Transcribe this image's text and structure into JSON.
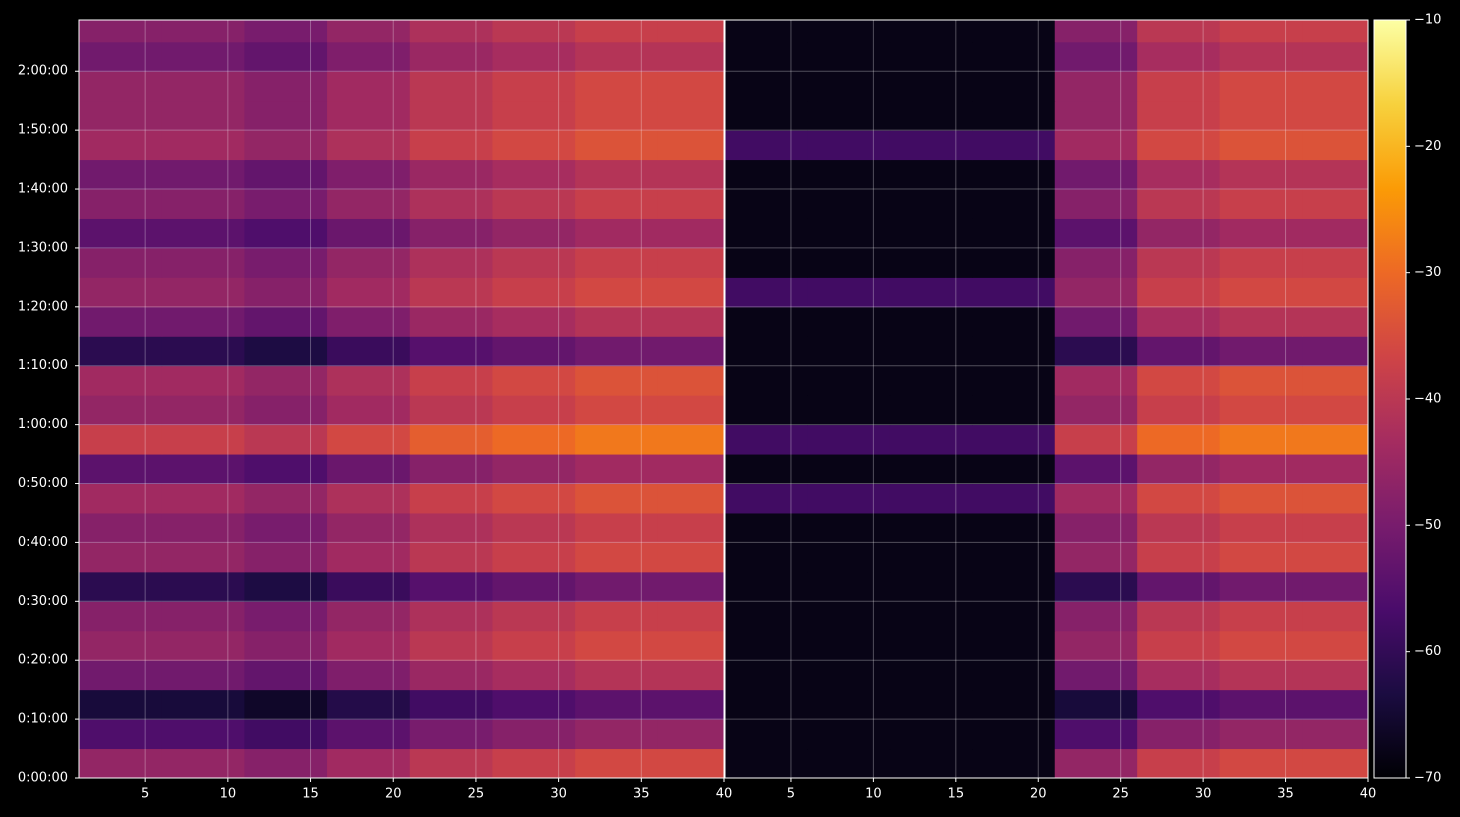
{
  "chart_data": {
    "type": "heatmap",
    "ylim": [
      0,
      7722
    ],
    "yticks": [
      {
        "value": 0,
        "label": "0:00:00"
      },
      {
        "value": 600,
        "label": "0:10:00"
      },
      {
        "value": 1200,
        "label": "0:20:00"
      },
      {
        "value": 1800,
        "label": "0:30:00"
      },
      {
        "value": 2400,
        "label": "0:40:00"
      },
      {
        "value": 3000,
        "label": "0:50:00"
      },
      {
        "value": 3600,
        "label": "1:00:00"
      },
      {
        "value": 4200,
        "label": "1:10:00"
      },
      {
        "value": 4800,
        "label": "1:20:00"
      },
      {
        "value": 5400,
        "label": "1:30:00"
      },
      {
        "value": 6000,
        "label": "1:40:00"
      },
      {
        "value": 6600,
        "label": "1:50:00"
      },
      {
        "value": 7200,
        "label": "2:00:00"
      }
    ],
    "grid": true,
    "zlim": [
      -70,
      -10
    ],
    "zticks": [
      {
        "value": -70,
        "label": "−70"
      },
      {
        "value": -60,
        "label": "−60"
      },
      {
        "value": -50,
        "label": "−50"
      },
      {
        "value": -40,
        "label": "−40"
      },
      {
        "value": -30,
        "label": "−30"
      },
      {
        "value": -20,
        "label": "−20"
      },
      {
        "value": -10,
        "label": "−10"
      }
    ],
    "colormap": [
      "#000004",
      "#1b0c41",
      "#4a0c6b",
      "#781c6d",
      "#a52c60",
      "#cf4446",
      "#ed6925",
      "#fb9b06",
      "#f7d13d",
      "#fcffa4"
    ],
    "x_bins": [
      1,
      6,
      11,
      16,
      21,
      26,
      31,
      36,
      40
    ],
    "y_bins": [
      0,
      300,
      600,
      900,
      1200,
      1500,
      1800,
      2100,
      2400,
      2700,
      3000,
      3300,
      3600,
      3900,
      4200,
      4500,
      4800,
      5100,
      5400,
      5700,
      6000,
      6300,
      6600,
      6900,
      7200,
      7500,
      7800
    ],
    "panels": [
      {
        "xlim": [
          1,
          40
        ],
        "xticks": [
          5,
          10,
          15,
          20,
          25,
          30,
          35,
          40
        ],
        "z": [
          [
            -46,
            -46,
            -48,
            -44,
            -40,
            -38,
            -36,
            -36
          ],
          [
            -56,
            -56,
            -58,
            -54,
            -50,
            -48,
            -46,
            -46
          ],
          [
            -64,
            -64,
            -66,
            -62,
            -58,
            -56,
            -54,
            -54
          ],
          [
            -51,
            -51,
            -53,
            -49,
            -45,
            -43,
            -41,
            -41
          ],
          [
            -46,
            -46,
            -48,
            -44,
            -40,
            -38,
            -36,
            -36
          ],
          [
            -48,
            -48,
            -50,
            -46,
            -42,
            -40,
            -38,
            -38
          ],
          [
            -61,
            -61,
            -63,
            -59,
            -55,
            -53,
            -51,
            -51
          ],
          [
            -46,
            -46,
            -48,
            -44,
            -40,
            -38,
            -36,
            -36
          ],
          [
            -48,
            -48,
            -50,
            -46,
            -42,
            -40,
            -38,
            -38
          ],
          [
            -44,
            -44,
            -46,
            -42,
            -38,
            -36,
            -34,
            -34
          ],
          [
            -54,
            -54,
            -56,
            -52,
            -48,
            -46,
            -44,
            -44
          ],
          [
            -38,
            -38,
            -40,
            -36,
            -32,
            -30,
            -28,
            -28
          ],
          [
            -46,
            -46,
            -48,
            -44,
            -40,
            -38,
            -36,
            -36
          ],
          [
            -44,
            -44,
            -46,
            -42,
            -38,
            -36,
            -34,
            -34
          ],
          [
            -61,
            -61,
            -63,
            -59,
            -55,
            -53,
            -51,
            -51
          ],
          [
            -51,
            -51,
            -53,
            -49,
            -45,
            -43,
            -41,
            -41
          ],
          [
            -46,
            -46,
            -48,
            -44,
            -40,
            -38,
            -36,
            -36
          ],
          [
            -48,
            -48,
            -50,
            -46,
            -42,
            -40,
            -38,
            -38
          ],
          [
            -54,
            -54,
            -56,
            -52,
            -48,
            -46,
            -44,
            -44
          ],
          [
            -48,
            -48,
            -50,
            -46,
            -42,
            -40,
            -38,
            -38
          ],
          [
            -51,
            -51,
            -53,
            -49,
            -45,
            -43,
            -41,
            -41
          ],
          [
            -44,
            -44,
            -46,
            -42,
            -38,
            -36,
            -34,
            -34
          ],
          [
            -46,
            -46,
            -48,
            -44,
            -40,
            -38,
            -36,
            -36
          ],
          [
            -46,
            -46,
            -48,
            -44,
            -40,
            -38,
            -36,
            -36
          ],
          [
            -51,
            -51,
            -53,
            -49,
            -45,
            -43,
            -41,
            -41
          ],
          [
            -48,
            -48,
            -50,
            -46,
            -42,
            -40,
            -38,
            -38
          ]
        ]
      },
      {
        "xlim": [
          1,
          40
        ],
        "xticks": [
          5,
          10,
          15,
          20,
          25,
          30,
          35,
          40
        ],
        "z": [
          [
            -68,
            -68,
            -68,
            -68,
            -46,
            -38,
            -36,
            -36
          ],
          [
            -68,
            -68,
            -68,
            -68,
            -56,
            -48,
            -46,
            -46
          ],
          [
            -68,
            -68,
            -68,
            -68,
            -64,
            -56,
            -54,
            -54
          ],
          [
            -68,
            -68,
            -68,
            -68,
            -51,
            -43,
            -41,
            -41
          ],
          [
            -68,
            -68,
            -68,
            -68,
            -46,
            -38,
            -36,
            -36
          ],
          [
            -68,
            -68,
            -68,
            -68,
            -48,
            -40,
            -38,
            -38
          ],
          [
            -68,
            -68,
            -68,
            -68,
            -61,
            -53,
            -51,
            -51
          ],
          [
            -68,
            -68,
            -68,
            -68,
            -46,
            -38,
            -36,
            -36
          ],
          [
            -68,
            -68,
            -68,
            -68,
            -48,
            -40,
            -38,
            -38
          ],
          [
            -58,
            -58,
            -58,
            -58,
            -44,
            -36,
            -34,
            -34
          ],
          [
            -68,
            -68,
            -68,
            -68,
            -54,
            -46,
            -44,
            -44
          ],
          [
            -58,
            -58,
            -58,
            -58,
            -38,
            -30,
            -28,
            -28
          ],
          [
            -68,
            -68,
            -68,
            -68,
            -46,
            -38,
            -36,
            -36
          ],
          [
            -68,
            -68,
            -68,
            -68,
            -44,
            -36,
            -34,
            -34
          ],
          [
            -68,
            -68,
            -68,
            -68,
            -61,
            -53,
            -51,
            -51
          ],
          [
            -68,
            -68,
            -68,
            -68,
            -51,
            -43,
            -41,
            -41
          ],
          [
            -58,
            -58,
            -58,
            -58,
            -46,
            -38,
            -36,
            -36
          ],
          [
            -68,
            -68,
            -68,
            -68,
            -48,
            -40,
            -38,
            -38
          ],
          [
            -68,
            -68,
            -68,
            -68,
            -54,
            -46,
            -44,
            -44
          ],
          [
            -68,
            -68,
            -68,
            -68,
            -48,
            -40,
            -38,
            -38
          ],
          [
            -68,
            -68,
            -68,
            -68,
            -51,
            -43,
            -41,
            -41
          ],
          [
            -58,
            -58,
            -58,
            -58,
            -44,
            -36,
            -34,
            -34
          ],
          [
            -68,
            -68,
            -68,
            -68,
            -46,
            -38,
            -36,
            -36
          ],
          [
            -68,
            -68,
            -68,
            -68,
            -46,
            -38,
            -36,
            -36
          ],
          [
            -68,
            -68,
            -68,
            -68,
            -51,
            -43,
            -41,
            -41
          ],
          [
            -68,
            -68,
            -68,
            -68,
            -48,
            -40,
            -38,
            -38
          ]
        ]
      }
    ]
  }
}
